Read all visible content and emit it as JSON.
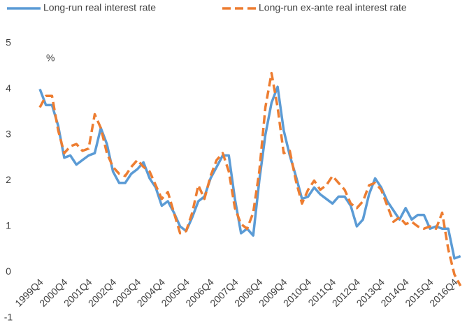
{
  "chart_data": {
    "type": "line",
    "annotation": "%",
    "categories": [
      "1999Q4",
      null,
      null,
      null,
      "2000Q4",
      null,
      null,
      null,
      "2001Q4",
      null,
      null,
      null,
      "2002Q4",
      null,
      null,
      null,
      "2003Q4",
      null,
      null,
      null,
      "2004Q4",
      null,
      null,
      null,
      "2005Q4",
      null,
      null,
      null,
      "2006Q4",
      null,
      null,
      null,
      "2007Q4",
      null,
      null,
      null,
      "2008Q4",
      null,
      null,
      null,
      "2009Q4",
      null,
      null,
      null,
      "2010Q4",
      null,
      null,
      null,
      "2011Q4",
      null,
      null,
      null,
      "2012Q4",
      null,
      null,
      null,
      "2013Q4",
      null,
      null,
      null,
      "2014Q4",
      null,
      null,
      null,
      "2015Q4",
      null,
      null,
      null,
      "2016Q4",
      null
    ],
    "series": [
      {
        "name": "Long-run real interest rate",
        "color": "#5b9bd5",
        "dashed": false,
        "values": [
          4.0,
          3.65,
          3.65,
          3.2,
          2.5,
          2.55,
          2.35,
          2.45,
          2.55,
          2.6,
          3.15,
          2.8,
          2.2,
          1.95,
          1.95,
          2.15,
          2.25,
          2.4,
          2.05,
          1.85,
          1.45,
          1.55,
          1.3,
          1.0,
          0.9,
          1.2,
          1.55,
          1.65,
          2.05,
          2.3,
          2.55,
          2.55,
          1.6,
          0.85,
          0.95,
          0.8,
          2.0,
          3.0,
          3.7,
          4.05,
          3.1,
          2.55,
          2.1,
          1.6,
          1.65,
          1.85,
          1.7,
          1.6,
          1.5,
          1.65,
          1.65,
          1.45,
          1.0,
          1.15,
          1.7,
          2.05,
          1.85,
          1.55,
          1.35,
          1.15,
          1.4,
          1.15,
          1.25,
          1.25,
          0.95,
          1.0,
          0.95,
          0.95,
          0.3,
          0.35
        ]
      },
      {
        "name": "Long-run ex-ante real interest rate",
        "color": "#ed7d31",
        "dashed": true,
        "values": [
          3.6,
          3.85,
          3.85,
          3.1,
          2.6,
          2.75,
          2.8,
          2.65,
          2.7,
          3.45,
          3.15,
          2.6,
          2.3,
          2.15,
          2.1,
          2.3,
          2.45,
          2.3,
          2.2,
          1.9,
          1.6,
          1.75,
          1.3,
          0.85,
          0.9,
          1.3,
          1.9,
          1.6,
          2.1,
          2.45,
          2.6,
          2.2,
          1.4,
          1.05,
          0.95,
          1.3,
          2.2,
          3.6,
          4.35,
          3.6,
          2.6,
          2.65,
          2.0,
          1.5,
          1.8,
          2.0,
          1.8,
          1.9,
          2.1,
          1.95,
          1.8,
          1.5,
          1.4,
          1.55,
          1.9,
          1.95,
          1.8,
          1.45,
          1.1,
          1.2,
          1.05,
          1.1,
          1.0,
          0.95,
          1.0,
          0.95,
          1.3,
          0.5,
          -0.05,
          -0.3
        ]
      }
    ],
    "ylim": [
      -1,
      5
    ],
    "yticks": [
      -1,
      0,
      1,
      2,
      3,
      4,
      5
    ],
    "grid": false
  }
}
